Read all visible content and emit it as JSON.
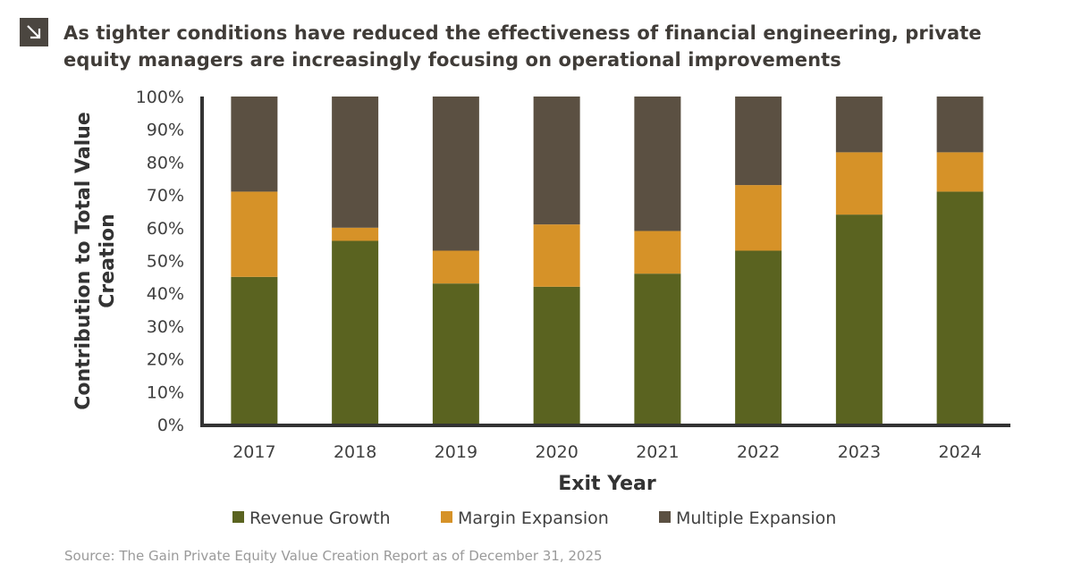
{
  "header": {
    "title": "As tighter conditions have reduced the effectiveness of financial engineering, private equity managers are increasingly focusing on operational improvements",
    "icon": "arrow-down-right-icon"
  },
  "footer": {
    "source": "Source: The Gain Private Equity Value Creation Report as of December 31, 2025"
  },
  "chart_data": {
    "type": "bar",
    "stacked": true,
    "categories": [
      "2017",
      "2018",
      "2019",
      "2020",
      "2021",
      "2022",
      "2023",
      "2024"
    ],
    "series": [
      {
        "name": "Revenue Growth",
        "color": "#5a6320",
        "values": [
          45,
          56,
          43,
          42,
          46,
          53,
          64,
          71
        ]
      },
      {
        "name": "Margin Expansion",
        "color": "#d69228",
        "values": [
          26,
          4,
          10,
          19,
          13,
          20,
          19,
          12
        ]
      },
      {
        "name": "Multiple Expansion",
        "color": "#5b5042",
        "values": [
          29,
          40,
          47,
          39,
          41,
          27,
          17,
          17
        ]
      }
    ],
    "xlabel": "Exit Year",
    "ylabel": "Contribution to Total Value Creation",
    "ylabel_lines": [
      "Contribution to Total Value",
      "Creation"
    ],
    "ylim": [
      0,
      100
    ],
    "yticks": [
      "0%",
      "10%",
      "20%",
      "30%",
      "40%",
      "50%",
      "60%",
      "70%",
      "80%",
      "90%",
      "100%"
    ],
    "grid": false,
    "legend_placement": "bottom"
  }
}
